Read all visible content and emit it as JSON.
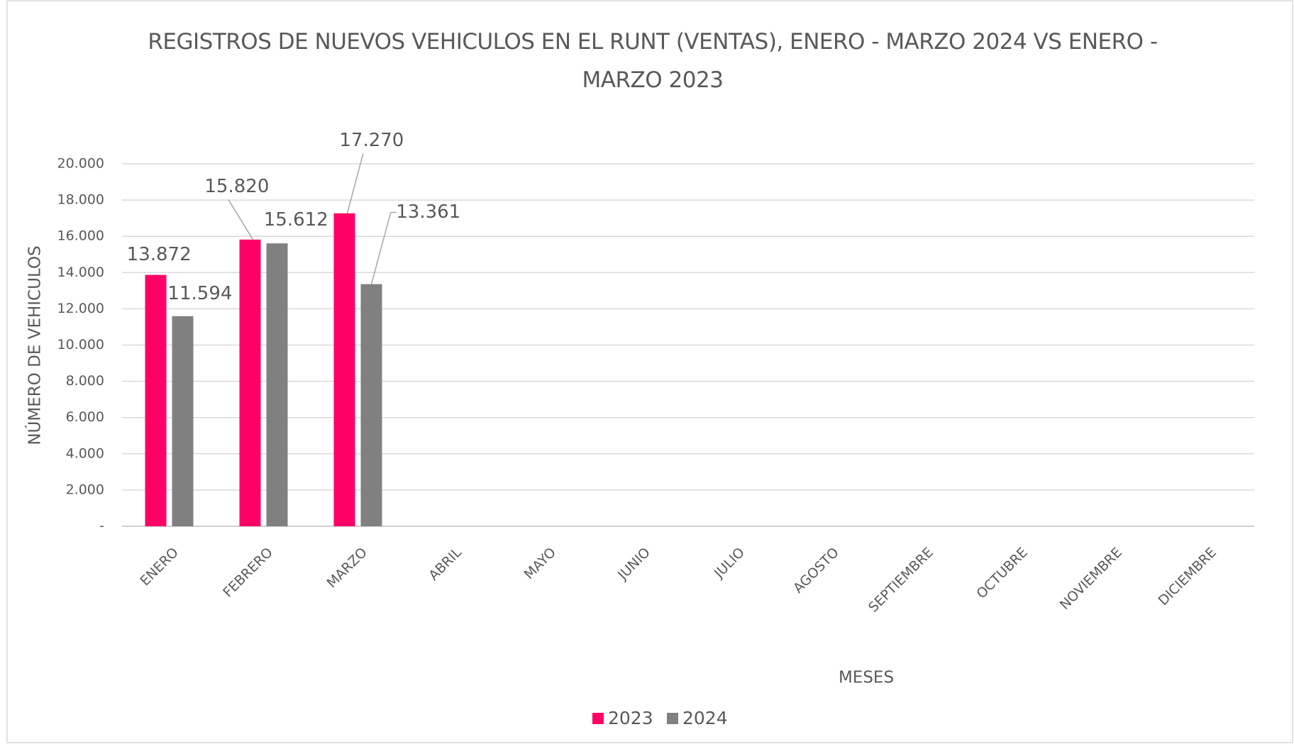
{
  "chart_data": {
    "type": "bar",
    "title": "REGISTROS DE NUEVOS VEHICULOS EN EL RUNT (VENTAS), ENERO - MARZO  2024 VS ENERO - MARZO 2023",
    "x_label": "MESES",
    "y_label": "NÚMERO DE VEHICULOS",
    "categories": [
      "ENERO",
      "FEBRERO",
      "MARZO",
      "ABRIL",
      "MAYO",
      "JUNIO",
      "JULIO",
      "AGOSTO",
      "SEPTIEMBRE",
      "OCTUBRE",
      "NOVIEMBRE",
      "DICIEMBRE"
    ],
    "series": [
      {
        "name": "2023",
        "color": "#ff0066",
        "values": [
          13872,
          15820,
          17270,
          null,
          null,
          null,
          null,
          null,
          null,
          null,
          null,
          null
        ],
        "value_labels": [
          "13.872",
          "15.820",
          "17.270",
          null,
          null,
          null,
          null,
          null,
          null,
          null,
          null,
          null
        ]
      },
      {
        "name": "2024",
        "color": "#808080",
        "values": [
          11594,
          15612,
          13361,
          null,
          null,
          null,
          null,
          null,
          null,
          null,
          null,
          null
        ],
        "value_labels": [
          "11.594",
          "15.612",
          "13.361",
          null,
          null,
          null,
          null,
          null,
          null,
          null,
          null,
          null
        ]
      }
    ],
    "ylim": [
      0,
      20000
    ],
    "yticks": [
      {
        "value": 0,
        "label": "-"
      },
      {
        "value": 2000,
        "label": "2.000"
      },
      {
        "value": 4000,
        "label": "4.000"
      },
      {
        "value": 6000,
        "label": "6.000"
      },
      {
        "value": 8000,
        "label": "8.000"
      },
      {
        "value": 10000,
        "label": "10.000"
      },
      {
        "value": 12000,
        "label": "12.000"
      },
      {
        "value": 14000,
        "label": "14.000"
      },
      {
        "value": 16000,
        "label": "16.000"
      },
      {
        "value": 18000,
        "label": "18.000"
      },
      {
        "value": 20000,
        "label": "20.000"
      }
    ],
    "grid": true,
    "legend": "bottom"
  }
}
